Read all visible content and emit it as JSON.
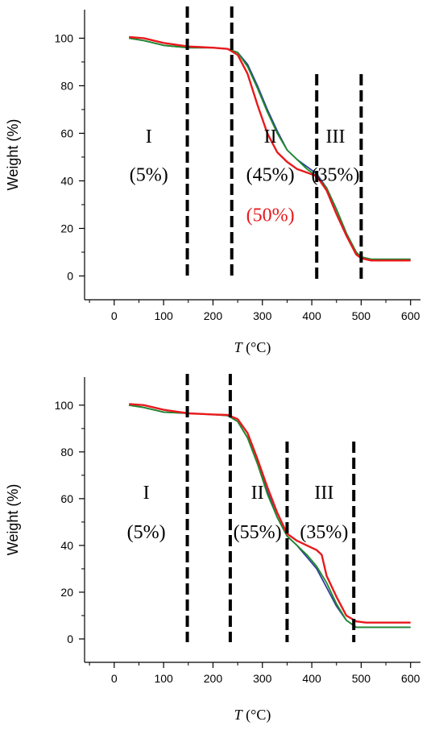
{
  "chart_data": [
    {
      "type": "line",
      "xlabel_italic": "T",
      "xlabel_rest": " (°C)",
      "ylabel": "Weight (%)",
      "xlim": [
        -60,
        620
      ],
      "ylim": [
        -10,
        112
      ],
      "xticks": [
        0,
        100,
        200,
        300,
        400,
        500,
        600
      ],
      "yticks": [
        0,
        20,
        40,
        60,
        80,
        100
      ],
      "grid": false,
      "dividers": [
        148,
        238,
        410,
        500
      ],
      "annotations": [
        {
          "text": "I",
          "x": 70,
          "y": 56,
          "color": "#000000"
        },
        {
          "text": "(5%)",
          "x": 70,
          "y": 40,
          "color": "#000000"
        },
        {
          "text": "II",
          "x": 316,
          "y": 56,
          "color": "#000000"
        },
        {
          "text": "(45%)",
          "x": 316,
          "y": 40,
          "color": "#000000"
        },
        {
          "text": "(50%)",
          "x": 316,
          "y": 23,
          "color": "#e8191c"
        },
        {
          "text": "III",
          "x": 448,
          "y": 56,
          "color": "#000000"
        },
        {
          "text": "(35%)",
          "x": 448,
          "y": 40,
          "color": "#000000"
        }
      ],
      "series": [
        {
          "color": "#2f3f9a",
          "x": [
            30,
            60,
            100,
            150,
            200,
            230,
            250,
            270,
            290,
            310,
            330,
            350,
            370,
            390,
            410,
            430,
            450,
            470,
            490,
            500,
            520,
            560,
            600
          ],
          "y": [
            100,
            99,
            97,
            96,
            96,
            95.5,
            94,
            89,
            80,
            70,
            61,
            53,
            49,
            46,
            43,
            37,
            28,
            18,
            10,
            8,
            7,
            7,
            7
          ]
        },
        {
          "color": "#1f8a2a",
          "x": [
            30,
            60,
            100,
            150,
            200,
            230,
            250,
            270,
            290,
            310,
            330,
            350,
            370,
            390,
            410,
            430,
            450,
            470,
            490,
            500,
            520,
            560,
            600
          ],
          "y": [
            100,
            99,
            97,
            96,
            96,
            95.5,
            94,
            88,
            79,
            69,
            60,
            53,
            49,
            45,
            42,
            37,
            28,
            18,
            10,
            8,
            7,
            7,
            7
          ]
        },
        {
          "color": "#e8191c",
          "x": [
            30,
            60,
            100,
            150,
            200,
            230,
            250,
            270,
            290,
            310,
            330,
            350,
            370,
            390,
            410,
            430,
            450,
            470,
            490,
            500,
            520,
            560,
            600
          ],
          "y": [
            100.5,
            100,
            98,
            96.5,
            96,
            95.5,
            93,
            85,
            72,
            60,
            52,
            48,
            45,
            43.5,
            42,
            36,
            26,
            17,
            9,
            7.5,
            6.5,
            6.5,
            6.5
          ]
        }
      ]
    },
    {
      "type": "line",
      "xlabel_italic": "T",
      "xlabel_rest": " (°C)",
      "ylabel": "Weight (%)",
      "xlim": [
        -60,
        620
      ],
      "ylim": [
        -10,
        112
      ],
      "xticks": [
        0,
        100,
        200,
        300,
        400,
        500,
        600
      ],
      "yticks": [
        0,
        20,
        40,
        60,
        80,
        100
      ],
      "grid": false,
      "dividers": [
        148,
        235,
        350,
        485
      ],
      "annotations": [
        {
          "text": "I",
          "x": 65,
          "y": 60,
          "color": "#000000"
        },
        {
          "text": "(5%)",
          "x": 65,
          "y": 43,
          "color": "#000000"
        },
        {
          "text": "II",
          "x": 290,
          "y": 60,
          "color": "#000000"
        },
        {
          "text": "(55%)",
          "x": 290,
          "y": 43,
          "color": "#000000"
        },
        {
          "text": "III",
          "x": 425,
          "y": 60,
          "color": "#000000"
        },
        {
          "text": "(35%)",
          "x": 425,
          "y": 43,
          "color": "#000000"
        }
      ],
      "series": [
        {
          "color": "#2f3f9a",
          "x": [
            30,
            60,
            100,
            150,
            200,
            230,
            250,
            270,
            290,
            310,
            330,
            350,
            370,
            390,
            410,
            430,
            450,
            470,
            490,
            510,
            560,
            600
          ],
          "y": [
            100,
            99,
            97,
            96.5,
            96,
            95.5,
            93,
            86,
            75,
            63,
            52,
            44,
            40,
            35,
            30,
            22,
            14,
            8,
            5,
            5,
            5,
            5
          ]
        },
        {
          "color": "#1f8a2a",
          "x": [
            30,
            60,
            100,
            150,
            200,
            230,
            250,
            270,
            290,
            310,
            330,
            350,
            370,
            390,
            410,
            430,
            450,
            470,
            490,
            510,
            560,
            600
          ],
          "y": [
            100,
            99,
            97,
            96.5,
            96,
            95.5,
            93,
            86,
            75,
            62,
            52,
            44,
            40,
            36,
            31,
            24,
            15,
            8,
            5,
            5,
            5,
            5
          ]
        },
        {
          "color": "#e8191c",
          "x": [
            30,
            60,
            100,
            150,
            200,
            230,
            250,
            270,
            290,
            310,
            330,
            350,
            370,
            390,
            410,
            420,
            430,
            450,
            470,
            490,
            510,
            560,
            600
          ],
          "y": [
            100.5,
            100,
            98,
            96.5,
            96,
            95.8,
            94,
            88,
            77,
            65,
            54,
            45,
            42,
            40,
            38,
            36,
            27,
            18,
            10,
            7.5,
            7,
            7,
            7
          ]
        }
      ]
    }
  ]
}
